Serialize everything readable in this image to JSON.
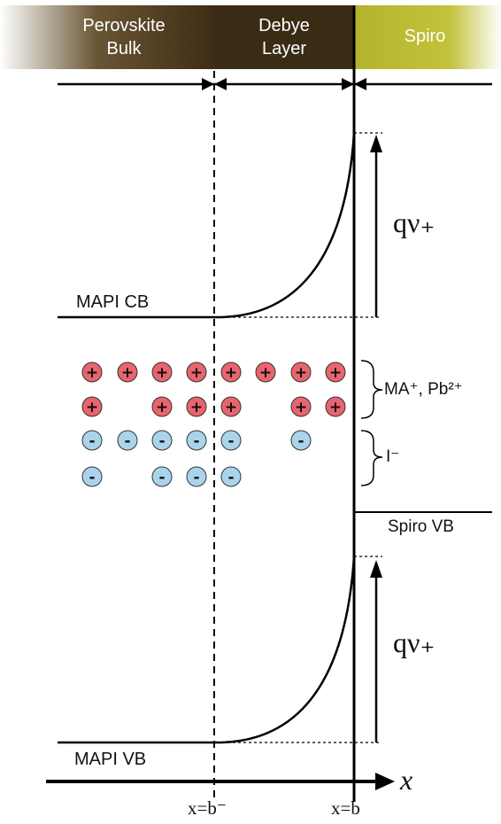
{
  "header": {
    "regions": [
      {
        "line1": "Perovskite",
        "line2": "Bulk"
      },
      {
        "line1": "Debye",
        "line2": "Layer"
      },
      {
        "line1": "Spiro",
        "line2": ""
      }
    ],
    "colors": {
      "bulk": "#3e2d14",
      "debye": "#3a2c14",
      "spiro": "#b4b42c"
    }
  },
  "labels": {
    "mapi_cb": "MAPI CB",
    "mapi_vb": "MAPI VB",
    "spiro_vb": "Spiro VB",
    "qv_upper": "qν₊",
    "qv_lower": "qν₊",
    "cations": "MA⁺, Pb²⁺",
    "anions": "I⁻",
    "x_axis": "x",
    "x_b_minus": "x=b⁻",
    "x_b": "x=b"
  },
  "ions": {
    "cation_color": "#e8646e",
    "anion_color": "#aad4ec",
    "cation_symbol": "+",
    "anion_symbol": "-",
    "cation_rows": [
      [
        true,
        true,
        true,
        true,
        true,
        true,
        true,
        true
      ],
      [
        true,
        false,
        true,
        true,
        true,
        false,
        true,
        true
      ]
    ],
    "anion_rows": [
      [
        true,
        true,
        true,
        true,
        true,
        false,
        true,
        false
      ],
      [
        true,
        false,
        true,
        true,
        true,
        false,
        false,
        false
      ]
    ]
  }
}
